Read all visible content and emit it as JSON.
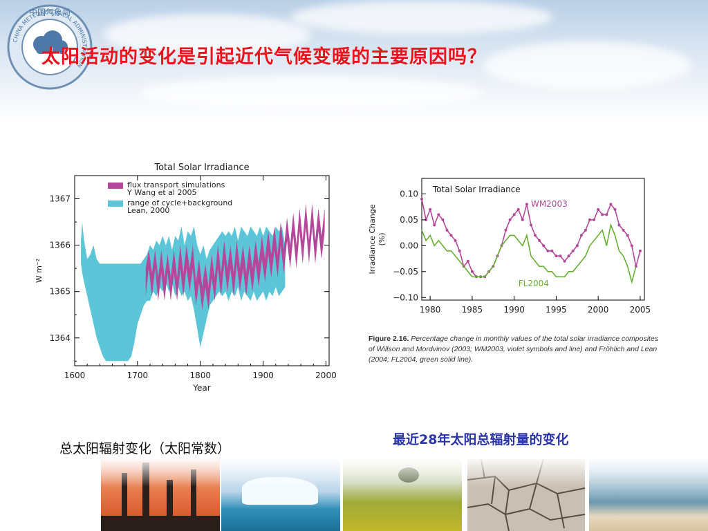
{
  "title": "太阳活动的变化是引起近代气候变暖的主要原因吗？",
  "logo": {
    "name": "China Meteorological Administration emblem",
    "text": "中国气象局",
    "ring_text": "CHINA METEOROLOGICAL ADMINISTRATION"
  },
  "captions": {
    "left": "总太阳辐射变化（太阳常数）",
    "right": "最近28年太阳总辐射量的变化"
  },
  "figure_caption": {
    "label": "Figure 2.16.",
    "text": "Percentage change in monthly values of the total solar irradiance composites of Willson and Mordvinov (2003; WM2003, violet symbols and line) and Fröhlich and Lean (2004; FL2004, green solid line)."
  },
  "colors": {
    "title": "#e8131b",
    "caption_right": "#2a35a8",
    "band_lean": "#5cc6d8",
    "band_wang": "#b5479b",
    "wm2003": "#b5479b",
    "fl2004": "#66b033"
  },
  "photos": [
    "industrial-smokestacks",
    "iceberg",
    "rapeseed-field",
    "cracked-earth",
    "ocean-shore"
  ],
  "chart_data": [
    {
      "type": "area",
      "title": "Total Solar Irradiance",
      "xlabel": "Year",
      "ylabel": "W m⁻²",
      "xlim": [
        1600,
        2005
      ],
      "ylim": [
        1363.4,
        1367.5
      ],
      "xticks": [
        1600,
        1700,
        1800,
        1900,
        2000
      ],
      "yticks": [
        1364,
        1365,
        1366,
        1367
      ],
      "legend_position": "top-left",
      "series": [
        {
          "name": "range of cycle+background Lean, 2000",
          "color": "#5cc6d8",
          "x": [
            1610,
            1612,
            1615,
            1620,
            1625,
            1630,
            1635,
            1640,
            1645,
            1650,
            1655,
            1660,
            1665,
            1670,
            1675,
            1680,
            1685,
            1690,
            1695,
            1700,
            1705,
            1710,
            1715,
            1720,
            1725,
            1730,
            1735,
            1740,
            1745,
            1750,
            1755,
            1760,
            1765,
            1770,
            1775,
            1780,
            1785,
            1790,
            1795,
            1800,
            1805,
            1810,
            1815,
            1820,
            1825,
            1830,
            1835,
            1840,
            1845,
            1850,
            1855,
            1860,
            1865,
            1870,
            1875,
            1880,
            1885,
            1890,
            1895,
            1900,
            1905,
            1910,
            1915,
            1920,
            1925,
            1930,
            1935
          ],
          "upper": [
            1366.1,
            1366.5,
            1366.1,
            1365.7,
            1365.8,
            1366.0,
            1365.7,
            1365.6,
            1365.6,
            1365.6,
            1365.6,
            1365.6,
            1365.6,
            1365.6,
            1365.6,
            1365.6,
            1365.6,
            1365.6,
            1365.6,
            1365.6,
            1365.6,
            1365.7,
            1365.8,
            1366.0,
            1365.9,
            1366.1,
            1366.0,
            1366.2,
            1366.0,
            1366.2,
            1365.9,
            1366.2,
            1366.1,
            1366.4,
            1366.0,
            1366.3,
            1366.2,
            1366.4,
            1366.0,
            1365.8,
            1366.0,
            1365.7,
            1365.9,
            1366.0,
            1366.1,
            1366.2,
            1366.3,
            1366.2,
            1366.3,
            1366.2,
            1366.4,
            1366.1,
            1366.4,
            1366.3,
            1366.2,
            1366.4,
            1366.3,
            1366.2,
            1366.4,
            1366.2,
            1366.4,
            1366.3,
            1366.2,
            1366.4,
            1366.3,
            1366.4,
            1366.0
          ],
          "lower": [
            1365.6,
            1365.4,
            1365.2,
            1364.9,
            1364.6,
            1364.3,
            1364.0,
            1363.8,
            1363.6,
            1363.5,
            1363.5,
            1363.5,
            1363.5,
            1363.5,
            1363.5,
            1363.5,
            1363.5,
            1363.6,
            1363.9,
            1364.3,
            1364.5,
            1364.7,
            1364.8,
            1364.8,
            1365.0,
            1364.9,
            1365.1,
            1365.0,
            1365.2,
            1365.0,
            1365.2,
            1364.9,
            1365.1,
            1364.9,
            1365.0,
            1364.8,
            1364.9,
            1364.6,
            1364.2,
            1363.8,
            1364.1,
            1364.4,
            1364.7,
            1364.8,
            1364.9,
            1365.0,
            1364.9,
            1365.0,
            1364.8,
            1365.0,
            1364.9,
            1365.1,
            1364.8,
            1365.0,
            1364.9,
            1364.8,
            1365.0,
            1364.8,
            1364.9,
            1365.0,
            1364.8,
            1365.0,
            1364.9,
            1365.1,
            1364.9,
            1365.0,
            1365.1
          ]
        },
        {
          "name": "flux transport simulations Y Wang et al 2005",
          "color": "#b5479b",
          "x": [
            1713,
            1718,
            1723,
            1728,
            1733,
            1738,
            1743,
            1748,
            1753,
            1758,
            1763,
            1768,
            1773,
            1778,
            1783,
            1788,
            1793,
            1798,
            1803,
            1808,
            1813,
            1818,
            1823,
            1828,
            1833,
            1838,
            1843,
            1848,
            1853,
            1858,
            1863,
            1868,
            1873,
            1878,
            1883,
            1888,
            1893,
            1898,
            1903,
            1908,
            1913,
            1918,
            1923,
            1928,
            1933,
            1938,
            1943,
            1948,
            1953,
            1958,
            1963,
            1968,
            1973,
            1978,
            1983,
            1988,
            1993,
            1998
          ],
          "upper": [
            1365.5,
            1365.9,
            1365.4,
            1365.9,
            1365.3,
            1365.9,
            1365.3,
            1365.8,
            1365.3,
            1365.9,
            1365.3,
            1366.0,
            1365.4,
            1366.0,
            1365.5,
            1366.0,
            1365.2,
            1365.7,
            1365.1,
            1365.6,
            1365.1,
            1365.8,
            1365.3,
            1366.0,
            1365.4,
            1366.1,
            1365.5,
            1366.0,
            1365.4,
            1366.1,
            1365.5,
            1366.0,
            1365.4,
            1366.0,
            1365.5,
            1366.1,
            1365.6,
            1366.2,
            1365.7,
            1366.3,
            1365.8,
            1366.4,
            1365.8,
            1366.5,
            1365.9,
            1366.6,
            1366.0,
            1366.7,
            1366.0,
            1366.8,
            1366.1,
            1366.9,
            1366.1,
            1366.9,
            1366.1,
            1366.8,
            1366.2,
            1366.8
          ],
          "lower": [
            1364.9,
            1365.5,
            1364.9,
            1365.5,
            1364.8,
            1365.4,
            1364.8,
            1365.4,
            1364.8,
            1365.4,
            1364.8,
            1365.5,
            1364.9,
            1365.5,
            1365.0,
            1365.5,
            1364.7,
            1365.2,
            1364.6,
            1365.1,
            1364.6,
            1365.3,
            1364.8,
            1365.5,
            1364.9,
            1365.6,
            1365.0,
            1365.5,
            1364.9,
            1365.6,
            1365.0,
            1365.5,
            1364.9,
            1365.5,
            1365.0,
            1365.6,
            1365.1,
            1365.7,
            1365.2,
            1365.8,
            1365.3,
            1365.9,
            1365.3,
            1366.0,
            1365.4,
            1366.1,
            1365.5,
            1366.2,
            1365.5,
            1366.3,
            1365.6,
            1366.4,
            1365.6,
            1366.4,
            1365.6,
            1366.3,
            1365.7,
            1366.3
          ]
        }
      ]
    },
    {
      "type": "line",
      "title": "Total Solar Irradiance",
      "xlabel": "",
      "ylabel": "Irradiance Change (%)",
      "xlim": [
        1979,
        2005.5
      ],
      "ylim": [
        -0.105,
        0.13
      ],
      "xticks": [
        1980,
        1985,
        1990,
        1995,
        2000,
        2005
      ],
      "yticks": [
        0.1,
        0.05,
        0.0,
        -0.05,
        -0.1
      ],
      "series": [
        {
          "name": "WM2003",
          "color": "#b5479b",
          "markers": true,
          "x": [
            1979.0,
            1979.5,
            1980.0,
            1980.5,
            1981.0,
            1981.5,
            1982.0,
            1982.5,
            1983.0,
            1983.5,
            1984.0,
            1984.5,
            1985.0,
            1985.5,
            1986.0,
            1986.5,
            1987.0,
            1987.5,
            1988.0,
            1988.5,
            1989.0,
            1989.5,
            1990.0,
            1990.5,
            1991.0,
            1991.5,
            1992.0,
            1992.5,
            1993.0,
            1993.5,
            1994.0,
            1994.5,
            1995.0,
            1995.5,
            1996.0,
            1996.5,
            1997.0,
            1997.5,
            1998.0,
            1998.5,
            1999.0,
            1999.5,
            2000.0,
            2000.5,
            2001.0,
            2001.5,
            2002.0,
            2002.5,
            2003.0,
            2003.5,
            2004.0,
            2004.5,
            2005.0
          ],
          "y": [
            0.09,
            0.05,
            0.07,
            0.04,
            0.06,
            0.05,
            0.03,
            0.02,
            0.01,
            -0.01,
            -0.04,
            -0.03,
            -0.05,
            -0.06,
            -0.06,
            -0.06,
            -0.05,
            -0.04,
            -0.02,
            0.0,
            0.03,
            0.05,
            0.06,
            0.07,
            0.05,
            0.08,
            0.04,
            0.02,
            0.01,
            0.0,
            -0.01,
            -0.01,
            -0.02,
            -0.02,
            -0.03,
            -0.02,
            -0.01,
            0.0,
            0.02,
            0.03,
            0.05,
            0.05,
            0.07,
            0.06,
            0.06,
            0.08,
            0.07,
            0.04,
            0.03,
            0.02,
            0.0,
            -0.04,
            -0.01
          ]
        },
        {
          "name": "FL2004",
          "color": "#66b033",
          "markers": false,
          "x": [
            1979.0,
            1979.5,
            1980.0,
            1980.5,
            1981.0,
            1981.5,
            1982.0,
            1982.5,
            1983.0,
            1983.5,
            1984.0,
            1984.5,
            1985.0,
            1985.5,
            1986.0,
            1986.5,
            1987.0,
            1987.5,
            1988.0,
            1988.5,
            1989.0,
            1989.5,
            1990.0,
            1990.5,
            1991.0,
            1991.5,
            1992.0,
            1992.5,
            1993.0,
            1993.5,
            1994.0,
            1994.5,
            1995.0,
            1995.5,
            1996.0,
            1996.5,
            1997.0,
            1997.5,
            1998.0,
            1998.5,
            1999.0,
            1999.5,
            2000.0,
            2000.5,
            2001.0,
            2001.5,
            2002.0,
            2002.5,
            2003.0,
            2003.5,
            2004.0,
            2004.5
          ],
          "y": [
            0.03,
            0.01,
            0.02,
            0.0,
            0.01,
            0.0,
            -0.01,
            -0.01,
            -0.02,
            -0.03,
            -0.04,
            -0.05,
            -0.06,
            -0.06,
            -0.06,
            -0.06,
            -0.05,
            -0.04,
            -0.02,
            0.0,
            0.01,
            0.02,
            0.02,
            0.01,
            0.0,
            0.02,
            -0.02,
            -0.03,
            -0.04,
            -0.04,
            -0.05,
            -0.05,
            -0.06,
            -0.06,
            -0.06,
            -0.05,
            -0.05,
            -0.04,
            -0.03,
            -0.02,
            0.0,
            0.01,
            0.02,
            0.03,
            0.0,
            0.04,
            0.02,
            -0.01,
            -0.02,
            -0.04,
            -0.07,
            -0.04
          ]
        }
      ]
    }
  ]
}
